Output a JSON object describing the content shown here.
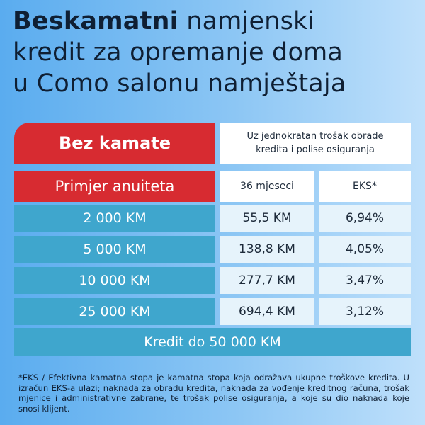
{
  "title": {
    "bold": "Beskamatni",
    "line1_rest": "namjenski",
    "line2": "kredit za opremanje doma",
    "line3": "u Como salonu namještaja"
  },
  "header": {
    "badge": "Bez kamate",
    "note_line1": "Uz jednokratan trošak obrade",
    "note_line2": "kredita i polise osiguranja"
  },
  "table": {
    "row_header": "Primjer anuiteta",
    "col1": "36 mjeseci",
    "col2": "EKS*",
    "rows": [
      {
        "amount": "2 000 KM",
        "annuity": "55,5 KM",
        "eks": "6,94%"
      },
      {
        "amount": "5 000 KM",
        "annuity": "138,8 KM",
        "eks": "4,05%"
      },
      {
        "amount": "10 000 KM",
        "annuity": "277,7 KM",
        "eks": "3,47%"
      },
      {
        "amount": "25 000 KM",
        "annuity": "694,4 KM",
        "eks": "3,12%"
      }
    ],
    "limit": "Kredit do 50 000 KM"
  },
  "footnote": "*EKS / Efektivna kamatna stopa je kamatna stopa koja odražava ukupne troškove kredita. U izračun EKS-a ulazi; naknada za obradu kredita, naknada za vođenje kreditnog računa, trošak mjenice i administrativne zabrane, te trošak polise osiguranja, a koje su dio naknada koje snosi klijent."
}
